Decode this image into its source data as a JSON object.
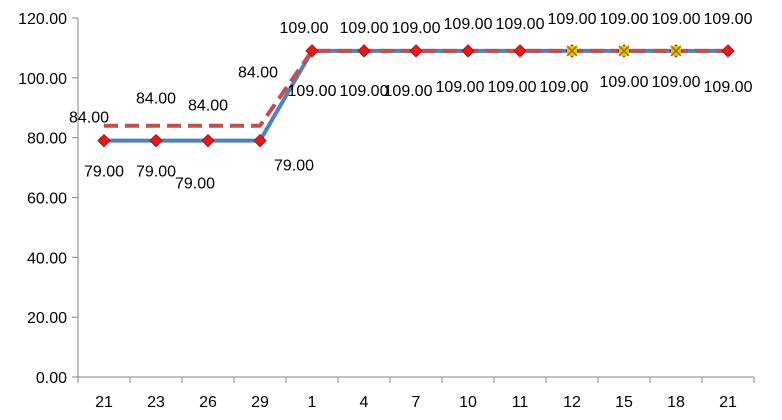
{
  "chart_data": {
    "type": "line",
    "categories": [
      "21",
      "23",
      "26",
      "29",
      "1",
      "4",
      "7",
      "10",
      "11",
      "12",
      "15",
      "18",
      "21"
    ],
    "ylim": [
      0,
      120
    ],
    "yticks": [
      "0.00",
      "20.00",
      "40.00",
      "60.00",
      "80.00",
      "100.00",
      "120.00"
    ],
    "grid": false,
    "legend": "none",
    "series": [
      {
        "color": "#4F81BD",
        "line_style": "solid",
        "marker": "diamond",
        "marker_color": "#E31A1C",
        "values": [
          79,
          79,
          79,
          79,
          109,
          109,
          109,
          109,
          109,
          109,
          109,
          109,
          109
        ],
        "labels": [
          "79.00",
          "79.00",
          "79.00",
          "79.00",
          "109.00",
          "109.00",
          "109.00",
          "109.00",
          "109.00",
          "109.00",
          "109.00",
          "109.00",
          "109.00"
        ]
      },
      {
        "color": "#C0504D",
        "line_style": "dashed",
        "marker": "x",
        "marker_color": "#F2E600",
        "values": [
          84,
          84,
          84,
          84,
          109,
          109,
          109,
          109,
          109,
          109,
          109,
          109,
          109
        ],
        "labels": [
          "84.00",
          "84.00",
          "84.00",
          "84.00",
          "109.00",
          "109.00",
          "109.00",
          "109.00",
          "109.00",
          "109.00",
          "109.00",
          "109.00",
          "109.00"
        ]
      }
    ]
  }
}
